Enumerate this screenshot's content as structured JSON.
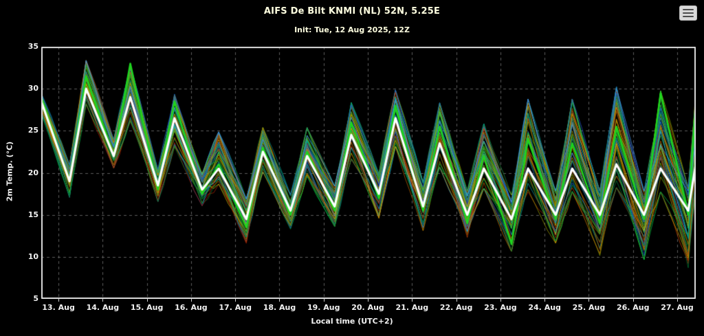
{
  "header": {
    "title": "AIFS De Bilt KNMI (NL) 52N, 5.25E",
    "subtitle": "Init: Tue, 12 Aug 2025, 12Z"
  },
  "icons": {
    "menu": "hamburger-menu-icon"
  },
  "colors": {
    "background": "#000000",
    "title": "#ffffe0",
    "text": "#f2f2f2",
    "grid": "#5c5c5c",
    "frame": "#dedede",
    "mean_line": "#ffffff",
    "control_line": "#1ed41e"
  },
  "chart_data": {
    "type": "line",
    "title": "AIFS De Bilt KNMI (NL) 52N, 5.25E",
    "subtitle": "Init: Tue, 12 Aug 2025, 12Z",
    "xlabel": "Local time (UTC+2)",
    "ylabel": "2m Temp. (°C)",
    "ylim": [
      5,
      35
    ],
    "y_ticks": [
      5,
      10,
      15,
      20,
      25,
      30,
      35
    ],
    "x_ticks": [
      "13. Aug",
      "14. Aug",
      "15. Aug",
      "16. Aug",
      "17. Aug",
      "18. Aug",
      "19. Aug",
      "20. Aug",
      "21. Aug",
      "22. Aug",
      "23. Aug",
      "24. Aug",
      "25. Aug",
      "26. Aug",
      "27. Aug"
    ],
    "grid": "dashed",
    "legend": "none",
    "description": "Ensemble spaghetti plot of 2m temperature with diurnal min (~06h) and max (~15h) per day; white = ensemble mean, thick green = control run, thin colored lines = ensemble members spanning the envelope.",
    "start": {
      "t_offset_days": -0.39,
      "mean": 28.5,
      "control": 29,
      "env_lo": 27,
      "env_hi": 29.5
    },
    "daily": {
      "labels": [
        "13. Aug",
        "14. Aug",
        "15. Aug",
        "16. Aug",
        "17. Aug",
        "18. Aug",
        "19. Aug",
        "20. Aug",
        "21. Aug",
        "22. Aug",
        "23. Aug",
        "24. Aug",
        "25. Aug",
        "26. Aug",
        "27. Aug"
      ],
      "mean_min": [
        19,
        22,
        18.5,
        18,
        14.5,
        15.5,
        16,
        17.5,
        16,
        15,
        14.5,
        15,
        15,
        15,
        15.5
      ],
      "mean_max": [
        30,
        29,
        26.5,
        20.5,
        22.5,
        22,
        24.5,
        26.5,
        23.5,
        20.5,
        20.5,
        20.5,
        21,
        20.5,
        21
      ],
      "control_min": [
        19,
        22,
        18,
        17.5,
        13.5,
        15,
        15.5,
        17,
        15.5,
        14,
        11.5,
        14.5,
        14,
        14.5,
        15
      ],
      "control_max": [
        31.5,
        33,
        28.5,
        21,
        23,
        22.5,
        26,
        28,
        25.5,
        22,
        24,
        23.5,
        25.5,
        29.5,
        28
      ],
      "env_min_lo": [
        17,
        20.5,
        16.5,
        16,
        11.5,
        13,
        13.5,
        14.5,
        13,
        12,
        10.5,
        11.5,
        10,
        9.5,
        8.5
      ],
      "env_min_hi": [
        21,
        24,
        20.5,
        20,
        17,
        17.5,
        18.5,
        20,
        19,
        18,
        17.5,
        18,
        18,
        18,
        18.5
      ],
      "env_max_lo": [
        28,
        26,
        23,
        18.5,
        20,
        19.5,
        21.5,
        23,
        20.5,
        18,
        17.5,
        17.5,
        18,
        17.5,
        18
      ],
      "env_max_hi": [
        33.5,
        33,
        29.5,
        25,
        25.5,
        25.5,
        28.5,
        30,
        28.5,
        26,
        29,
        29,
        30.5,
        30,
        30
      ]
    },
    "series_styles": {
      "mean": {
        "color": "#ffffff",
        "width": 3.2
      },
      "control": {
        "color": "#1ed41e",
        "width": 2.6
      },
      "members": {
        "width": 0.9,
        "count": 50
      }
    },
    "member_palette": [
      "#aa2200",
      "#cc4400",
      "#cc7700",
      "#dd9900",
      "#999900",
      "#88aa00",
      "#22aa22",
      "#00bb44",
      "#007733",
      "#009988",
      "#00a0a0",
      "#3377bb",
      "#2255cc",
      "#4499ee",
      "#b36200",
      "#1e8c3c",
      "#33cc55",
      "#d4b000"
    ]
  }
}
